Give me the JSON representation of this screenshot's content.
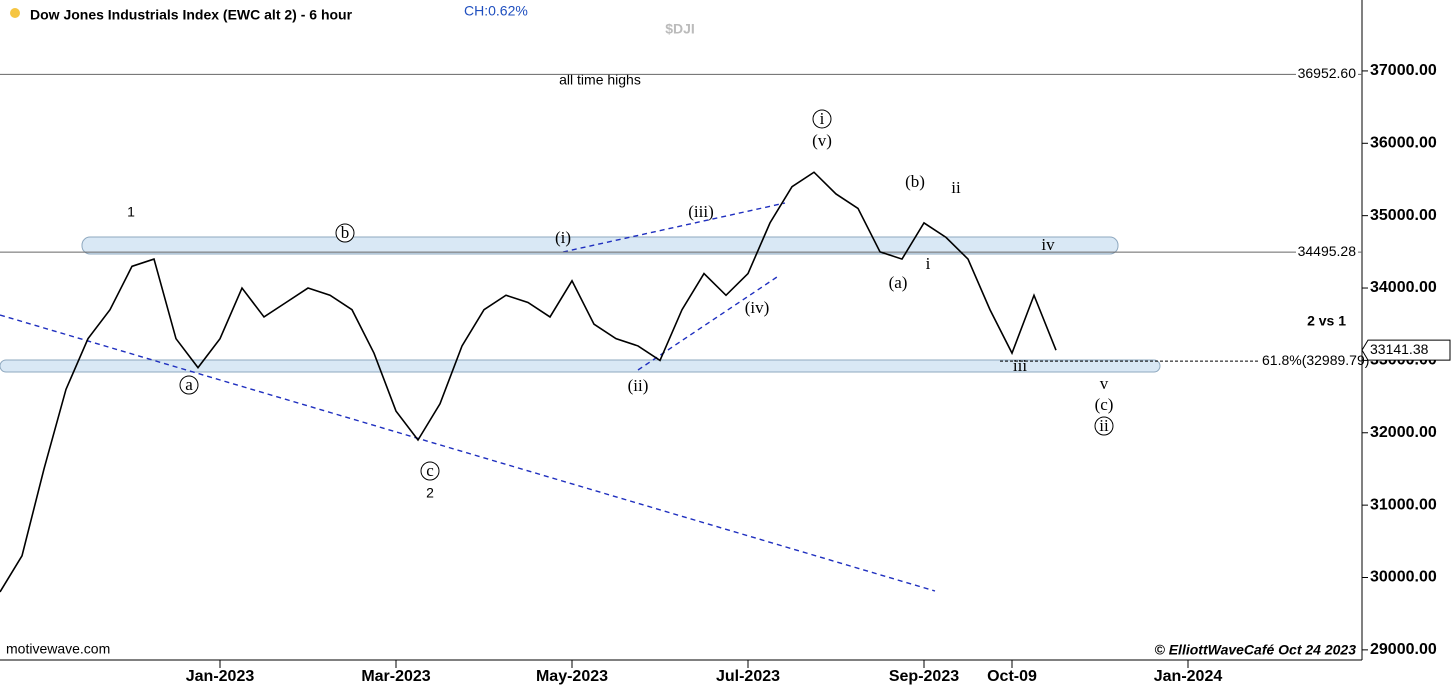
{
  "chart_data": {
    "type": "line",
    "title": "Dow Jones Industrials Index (EWC alt 2) - 6 hour",
    "change": "CH:0.62%",
    "symbol": "$DJI",
    "annotation_top": "all time highs",
    "source": "motivewave.com",
    "copyright": "© ElliottWaveCafé Oct 24 2023",
    "categories": [
      null,
      null,
      null,
      null,
      null,
      null,
      null,
      null,
      null,
      null,
      "Jan-2023",
      null,
      null,
      null,
      null,
      null,
      null,
      null,
      "Mar-2023",
      null,
      null,
      null,
      null,
      null,
      null,
      null,
      "May-2023",
      null,
      null,
      null,
      null,
      null,
      null,
      null,
      "Jul-2023",
      null,
      null,
      null,
      null,
      null,
      null,
      null,
      "Sep-2023",
      null,
      null,
      null,
      "Oct-09",
      null,
      null,
      null,
      null,
      null,
      null,
      null,
      "Jan-2024"
    ],
    "series": [
      {
        "name": "$DJI",
        "color": "#000000",
        "values": [
          29800,
          30300,
          31500,
          32600,
          33300,
          33700,
          34300,
          34400,
          33300,
          32900,
          33300,
          34000,
          33600,
          33800,
          34000,
          33900,
          33700,
          33100,
          32300,
          31900,
          32400,
          33200,
          33700,
          33900,
          33800,
          33600,
          34100,
          33500,
          33300,
          33200,
          33000,
          33700,
          34200,
          33900,
          34200,
          34900,
          35400,
          35600,
          35300,
          35100,
          34500,
          34400,
          34900,
          34700,
          34400,
          33700,
          33100,
          33900,
          33141,
          null,
          null,
          null,
          null,
          null,
          null
        ]
      }
    ],
    "ylim": [
      28860,
      37980
    ],
    "yticks": [
      {
        "value": 29000,
        "label": "29000.00"
      },
      {
        "value": 30000,
        "label": "30000.00"
      },
      {
        "value": 31000,
        "label": "31000.00"
      },
      {
        "value": 32000,
        "label": "32000.00"
      },
      {
        "value": 33000,
        "label": "33000.00"
      },
      {
        "value": 34000,
        "label": "34000.00"
      },
      {
        "value": 35000,
        "label": "35000.00"
      },
      {
        "value": 36000,
        "label": "36000.00"
      },
      {
        "value": 37000,
        "label": "37000.00"
      }
    ],
    "levels": [
      {
        "value": 36952.6,
        "label": "36952.60"
      },
      {
        "value": 34495.28,
        "label": "34495.28"
      }
    ],
    "fib_level": {
      "value": 32989.79,
      "label": "61.8%(32989.79)"
    },
    "last_price": {
      "value": 33141.38,
      "label": "33141.38"
    },
    "note": "2 vs 1",
    "wave_labels": [
      "1",
      "b",
      "a",
      "c",
      "2",
      "(i)",
      "(ii)",
      "(iii)",
      "(iv)",
      "i",
      "(v)",
      "(b)",
      "ii",
      "(a)",
      "i",
      "iv",
      "iii",
      "v",
      "(c)",
      "ii"
    ],
    "grid": false
  }
}
